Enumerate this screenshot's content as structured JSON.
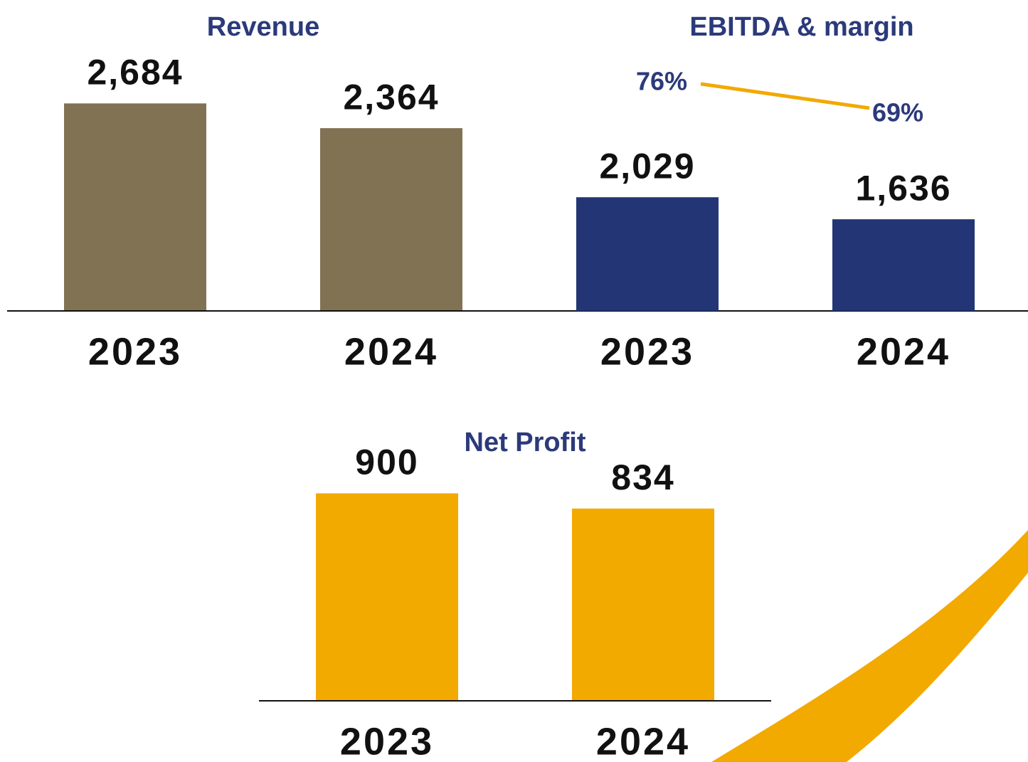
{
  "chart_data": [
    {
      "type": "bar",
      "title": "Revenue",
      "categories": [
        "2023",
        "2024"
      ],
      "values": [
        2684,
        2364
      ],
      "value_labels": [
        "2,684",
        "2,364"
      ],
      "color": "#827254",
      "ylim": [
        0,
        3000
      ]
    },
    {
      "type": "bar",
      "title": "EBITDA & margin",
      "categories": [
        "2023",
        "2024"
      ],
      "values": [
        2029,
        1636
      ],
      "value_labels": [
        "2,029",
        "1,636"
      ],
      "color": "#233574",
      "ylim": [
        0,
        4000
      ],
      "series": [
        {
          "type": "line",
          "axis": "y2",
          "color": "#f2a900",
          "values": [
            76,
            69
          ],
          "value_labels": [
            "76%",
            "69%"
          ]
        }
      ],
      "y2lim": [
        0,
        100
      ]
    },
    {
      "type": "bar",
      "title": "Net Profit",
      "categories": [
        "2023",
        "2024"
      ],
      "values": [
        900,
        834
      ],
      "color": "#f2a900",
      "ylim": [
        0,
        1000
      ]
    }
  ]
}
